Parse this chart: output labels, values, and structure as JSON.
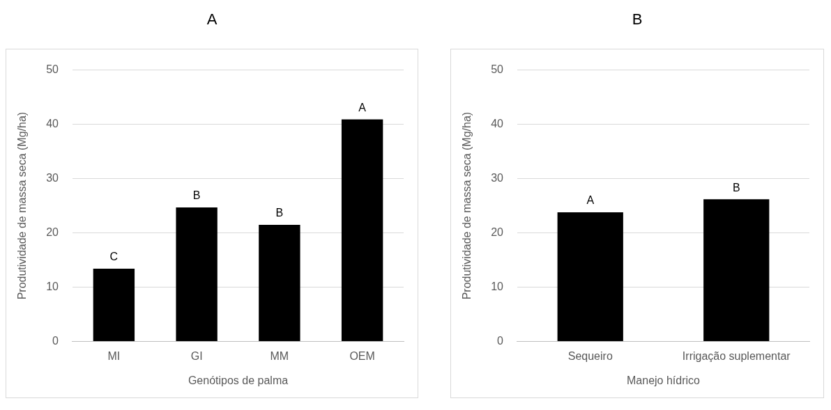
{
  "chart_data": [
    {
      "type": "bar",
      "title": "A",
      "categories": [
        "MI",
        "GI",
        "MM",
        "OEM"
      ],
      "values": [
        13.4,
        24.7,
        21.5,
        40.9
      ],
      "color": "#000000",
      "xlabel": "Genótipos de palma",
      "ylabel": "Produtividade de massa seca (Mg/ha)",
      "ylim": [
        0,
        50
      ],
      "yticks": [
        0,
        10,
        20,
        30,
        40,
        50
      ],
      "grid": "y",
      "annotations": [
        {
          "text": "C",
          "x": "MI",
          "y": 13.4
        },
        {
          "text": "B",
          "x": "GI",
          "y": 24.7
        },
        {
          "text": "B",
          "x": "MM",
          "y": 21.5
        },
        {
          "text": "A",
          "x": "OEM",
          "y": 40.9
        }
      ]
    },
    {
      "type": "bar",
      "title": "B",
      "categories": [
        "Sequeiro",
        "Irrigação suplementar"
      ],
      "values": [
        23.8,
        26.2
      ],
      "color": "#000000",
      "xlabel": "Manejo hídrico",
      "ylabel": "Produtividade de massa seca (Mg/ha)",
      "ylim": [
        0,
        50
      ],
      "yticks": [
        0,
        10,
        20,
        30,
        40,
        50
      ],
      "grid": "y",
      "annotations": [
        {
          "text": "A",
          "x": "Sequeiro",
          "y": 23.8
        },
        {
          "text": "B",
          "x": "Irrigação suplementar",
          "y": 26.2
        }
      ]
    }
  ]
}
